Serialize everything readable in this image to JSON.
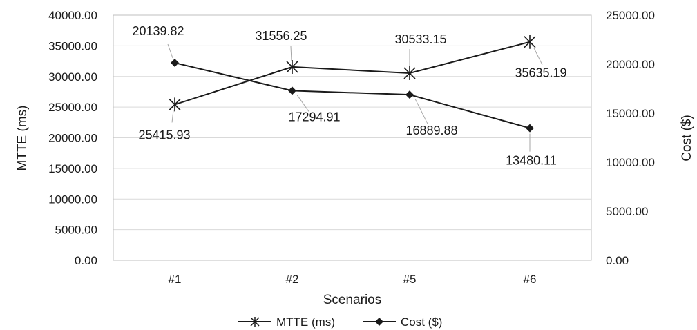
{
  "chart_data": {
    "type": "line",
    "categories": [
      "#1",
      "#2",
      "#5",
      "#6"
    ],
    "xlabel": "Scenarios",
    "ylabel": "MTTE (ms)",
    "y2label": "Cost ($)",
    "ylim": [
      0,
      40000
    ],
    "y2lim": [
      0,
      25000
    ],
    "yticks": [
      "0.00",
      "5000.00",
      "10000.00",
      "15000.00",
      "20000.00",
      "25000.00",
      "30000.00",
      "35000.00",
      "40000.00"
    ],
    "y2ticks": [
      "0.00",
      "5000.00",
      "10000.00",
      "15000.00",
      "20000.00",
      "25000.00"
    ],
    "grid": true,
    "legend_position": "bottom",
    "series": [
      {
        "name": "MTTE (ms)",
        "axis": "left",
        "marker": "asterisk",
        "color": "#1a1a1a",
        "values": [
          25415.93,
          31556.25,
          30533.15,
          35635.19
        ],
        "labels": [
          "25415.93",
          "31556.25",
          "30533.15",
          "35635.19"
        ]
      },
      {
        "name": "Cost ($)",
        "axis": "right",
        "marker": "diamond",
        "color": "#1a1a1a",
        "values": [
          20139.82,
          17294.91,
          16889.88,
          13480.11
        ],
        "labels": [
          "20139.82",
          "17294.91",
          "16889.88",
          "13480.11"
        ]
      }
    ]
  }
}
